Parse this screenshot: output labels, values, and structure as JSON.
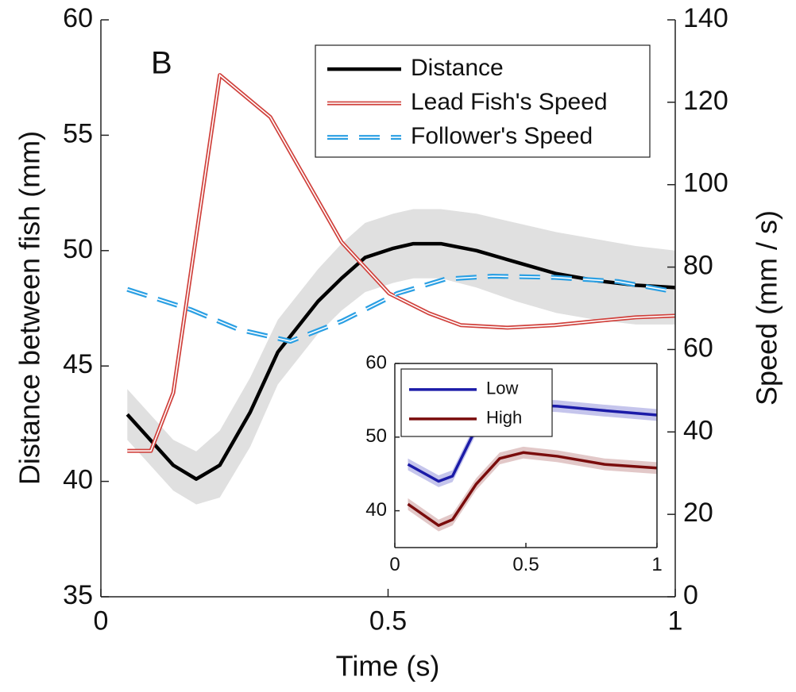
{
  "chart_data": [
    {
      "type": "line",
      "panel_label": "B",
      "xlabel": "Time (s)",
      "ylabel": "Distance between fish (mm)",
      "y2label": "Speed (mm / s)",
      "xlim": [
        0,
        1
      ],
      "xticks": [
        0,
        0.5,
        1
      ],
      "ylim": [
        35,
        60
      ],
      "yticks": [
        35,
        40,
        45,
        50,
        55,
        60
      ],
      "y2lim": [
        0,
        140
      ],
      "y2ticks": [
        0,
        20,
        40,
        60,
        80,
        100,
        120,
        140
      ],
      "legend": "top-right",
      "series": [
        {
          "name": "Distance",
          "color": "#000000",
          "band_color": "#e0e0e0",
          "style": "solid",
          "x": [
            0.046,
            0.126,
            0.166,
            0.207,
            0.26,
            0.308,
            0.378,
            0.419,
            0.46,
            0.509,
            0.544,
            0.592,
            0.654,
            0.723,
            0.793,
            0.862,
            0.931,
            1.0
          ],
          "values": [
            42.9,
            40.7,
            40.1,
            40.7,
            43.0,
            45.6,
            47.8,
            48.8,
            49.7,
            50.1,
            50.3,
            50.3,
            50.0,
            49.5,
            49.0,
            48.7,
            48.5,
            48.4
          ],
          "upper": [
            44.0,
            41.8,
            41.3,
            42.2,
            44.5,
            47.0,
            49.2,
            50.3,
            51.2,
            51.6,
            51.8,
            51.8,
            51.6,
            51.2,
            50.8,
            50.5,
            50.2,
            50.0
          ],
          "lower": [
            41.8,
            39.6,
            39.0,
            39.3,
            41.5,
            44.2,
            46.4,
            47.4,
            48.2,
            48.6,
            48.8,
            48.8,
            48.4,
            47.8,
            47.3,
            47.0,
            46.8,
            46.8
          ]
        },
        {
          "name": "Lead Fish's Speed",
          "color": "#d0413c",
          "axis": "y2",
          "style": "double",
          "x": [
            0.046,
            0.087,
            0.126,
            0.207,
            0.295,
            0.419,
            0.502,
            0.571,
            0.627,
            0.708,
            0.79,
            0.862,
            0.931,
            1.0
          ],
          "values": [
            35.4,
            35.4,
            49.5,
            126.6,
            116.4,
            86.1,
            73.6,
            68.8,
            65.9,
            65.3,
            65.9,
            66.9,
            67.8,
            68.2
          ]
        },
        {
          "name": "Follower's Speed",
          "color": "#2a9fe3",
          "axis": "y2",
          "style": "dashed",
          "x": [
            0.046,
            0.156,
            0.239,
            0.33,
            0.42,
            0.516,
            0.6,
            0.682,
            0.79,
            0.9,
            1.0
          ],
          "values": [
            74.6,
            69.7,
            64.9,
            62.0,
            66.9,
            73.6,
            77.1,
            77.8,
            77.5,
            76.5,
            74.0
          ]
        }
      ]
    },
    {
      "type": "line",
      "xlim": [
        0,
        1
      ],
      "xticks": [
        0,
        0.5,
        1
      ],
      "ylim": [
        35,
        60
      ],
      "yticks": [
        40,
        50,
        60
      ],
      "legend": "top-left",
      "series": [
        {
          "name": "Low",
          "color": "#1b1ba8",
          "band_color": "#c5c5ec",
          "style": "solid",
          "x": [
            0.05,
            0.167,
            0.22,
            0.31,
            0.4,
            0.49,
            0.62,
            0.8,
            1.0
          ],
          "values": [
            46.3,
            44.0,
            44.7,
            51.2,
            53.9,
            54.4,
            54.2,
            53.6,
            53.0
          ],
          "upper": [
            47.1,
            44.8,
            45.5,
            52.0,
            54.7,
            55.2,
            55.0,
            54.4,
            53.8
          ],
          "lower": [
            45.5,
            43.2,
            43.9,
            50.4,
            53.1,
            53.6,
            53.4,
            52.8,
            52.2
          ]
        },
        {
          "name": "High",
          "color": "#7a0c0c",
          "band_color": "#e2c8c8",
          "style": "solid",
          "x": [
            0.05,
            0.167,
            0.22,
            0.31,
            0.4,
            0.49,
            0.62,
            0.8,
            1.0
          ],
          "values": [
            40.9,
            38.0,
            38.8,
            43.6,
            47.1,
            47.9,
            47.4,
            46.3,
            45.8
          ],
          "upper": [
            41.7,
            38.8,
            39.6,
            44.4,
            47.9,
            48.7,
            48.2,
            47.1,
            46.6
          ],
          "lower": [
            40.1,
            37.2,
            38.0,
            42.8,
            46.3,
            47.1,
            46.6,
            45.5,
            45.0
          ]
        }
      ]
    }
  ]
}
